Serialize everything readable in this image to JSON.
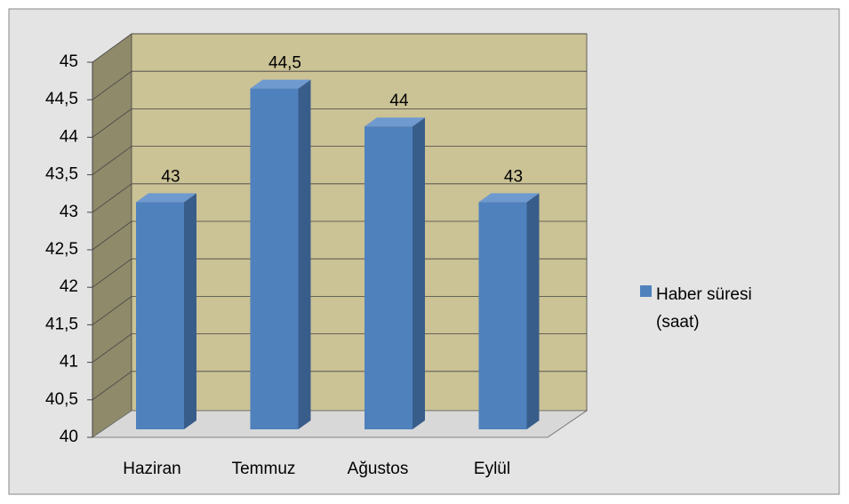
{
  "chart_data": {
    "type": "bar3d",
    "categories": [
      "Haziran",
      "Temmuz",
      "Ağustos",
      "Eylül"
    ],
    "series": [
      {
        "name": "Haber süresi (saat)",
        "color": "#4f81bd",
        "values": [
          43,
          44.5,
          44,
          43
        ],
        "value_labels": [
          "43",
          "44,5",
          "44",
          "43"
        ]
      }
    ],
    "ylim": [
      40,
      45
    ],
    "yticks": [
      40,
      {
        "value": 40.5,
        "label": "40,5"
      },
      41,
      {
        "value": 41.5,
        "label": "41,5"
      },
      42,
      {
        "value": 42.5,
        "label": "42,5"
      },
      43,
      {
        "value": 43.5,
        "label": "43,5"
      },
      44,
      {
        "value": 44.5,
        "label": "44,5"
      },
      45
    ],
    "grid": true,
    "legend": "right"
  }
}
